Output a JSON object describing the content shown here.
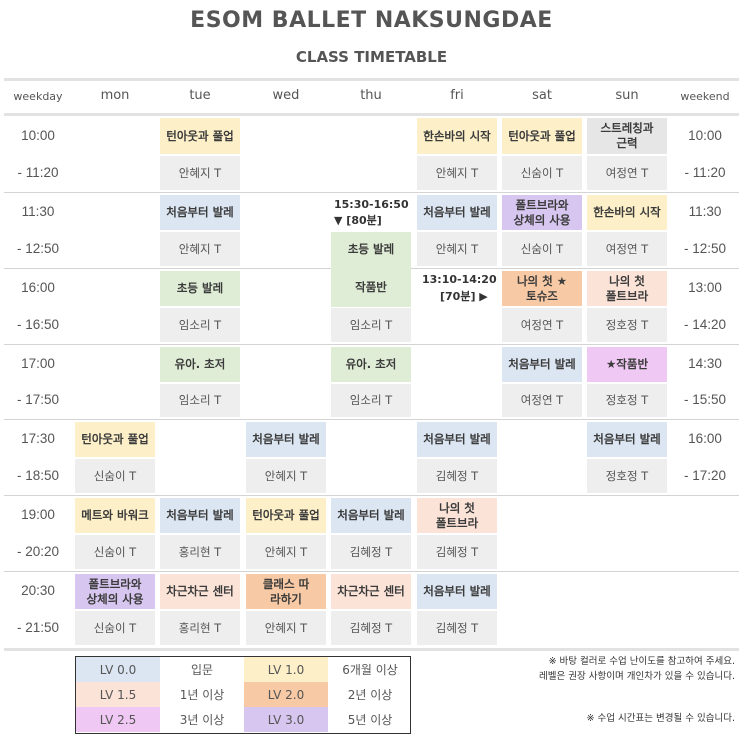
{
  "title": "ESOM BALLET NAKSUNGDAE",
  "subtitle": "CLASS TIMETABLE",
  "headers": {
    "weekday": "weekday",
    "mon": "mon",
    "tue": "tue",
    "wed": "wed",
    "thu": "thu",
    "fri": "fri",
    "sat": "sat",
    "sun": "sun",
    "weekend": "weekend"
  },
  "weekday_times": [
    {
      "start": "10:00",
      "end": "- 11:20"
    },
    {
      "start": "11:30",
      "end": "- 12:50"
    },
    {
      "start": "16:00",
      "end": "- 16:50"
    },
    {
      "start": "17:00",
      "end": "- 17:50"
    },
    {
      "start": "17:30",
      "end": "- 18:50"
    },
    {
      "start": "19:00",
      "end": "- 20:20"
    },
    {
      "start": "20:30",
      "end": "- 21:50"
    }
  ],
  "weekend_times": [
    {
      "start": "10:00",
      "end": "- 11:20"
    },
    {
      "start": "11:30",
      "end": "- 12:50"
    },
    {
      "start": "13:00",
      "end": "- 14:20"
    },
    {
      "start": "14:30",
      "end": "- 15:50"
    },
    {
      "start": "16:00",
      "end": "- 17:20"
    }
  ],
  "classes": {
    "tue_1": {
      "name": "턴아웃과 풀업",
      "teacher": "안혜지 T"
    },
    "tue_2": {
      "name": "처음부터 발레",
      "teacher": "안혜지 T"
    },
    "tue_3": {
      "name": "초등 발레",
      "teacher": "임소리 T"
    },
    "tue_4": {
      "name": "유아. 초저",
      "teacher": "임소리 T"
    },
    "tue_6": {
      "name": "처음부터 발레",
      "teacher": "홍리현 T"
    },
    "tue_7": {
      "name": "차근차근 센터",
      "teacher": "홍리현 T"
    },
    "mon_5": {
      "name": "턴아웃과 풀업",
      "teacher": "신숨이 T"
    },
    "mon_6": {
      "name": "메트와 바워크",
      "teacher": "신숨이 T"
    },
    "mon_7": {
      "name": "폴트브라와 상체의 사용",
      "teacher": "신숨이 T"
    },
    "wed_5": {
      "name": "처음부터 발레",
      "teacher": "안혜지 T"
    },
    "wed_6": {
      "name": "턴아웃과 풀업",
      "teacher": "안혜지 T"
    },
    "wed_7": {
      "name": "클래스 따라하기",
      "teacher": "안혜지 T"
    },
    "thu_note": {
      "time": "15:30-16:50",
      "dur": "▼ [80분]"
    },
    "thu_a": {
      "name": "초등 발레"
    },
    "thu_b": {
      "name": "작품반",
      "teacher": "임소리 T"
    },
    "thu_4": {
      "name": "유아. 초저",
      "teacher": "임소리 T"
    },
    "thu_6": {
      "name": "처음부터 발레",
      "teacher": "김혜정 T"
    },
    "thu_7": {
      "name": "차근차근 센터",
      "teacher": "김혜정 T"
    },
    "fri_1": {
      "name": "한손바의 시작",
      "teacher": "안혜지 T"
    },
    "fri_2": {
      "name": "처음부터 발레",
      "teacher": "안혜지 T"
    },
    "fri_note": {
      "time": "13:10-14:20",
      "dur": "[70분] ▶"
    },
    "fri_5": {
      "name": "처음부터 발레",
      "teacher": "김혜정 T"
    },
    "fri_6": {
      "name": "나의 첫 폴트브라",
      "teacher": "김혜정 T"
    },
    "fri_7": {
      "name": "처음부터 발레",
      "teacher": "김혜정 T"
    },
    "sat_1": {
      "name": "턴아웃과 풀업",
      "teacher": "신숨이 T"
    },
    "sat_2": {
      "name": "폴트브라와 상체의 사용",
      "teacher": "신숨이 T"
    },
    "sat_3": {
      "name": "나의 첫 ★토슈즈",
      "teacher": "여정연 T"
    },
    "sat_4": {
      "name": "처음부터 발레",
      "teacher": "여정연 T"
    },
    "sun_1": {
      "name": "스트레칭과 근력",
      "teacher": "여정연 T"
    },
    "sun_2": {
      "name": "한손바의 시작",
      "teacher": "여정연 T"
    },
    "sun_3": {
      "name": "나의 첫 폴트브라",
      "teacher": "정호정 T"
    },
    "sun_4": {
      "name": "★작품반",
      "teacher": "정호정 T"
    },
    "sun_5": {
      "name": "처음부터 발레",
      "teacher": "정호정 T"
    }
  },
  "legend": [
    {
      "level": "LV 0.0",
      "desc": "입문",
      "color": "#dce6f2"
    },
    {
      "level": "LV 1.0",
      "desc": "6개월 이상",
      "color": "#fdf0c9"
    },
    {
      "level": "LV 1.5",
      "desc": "1년 이상",
      "color": "#fbe3d8"
    },
    {
      "level": "LV 2.0",
      "desc": "2년 이상",
      "color": "#f7c9a4"
    },
    {
      "level": "LV 2.5",
      "desc": "3년 이상",
      "color": "#efc8f3"
    },
    {
      "level": "LV 3.0",
      "desc": "5년 이상",
      "color": "#d7c6ef"
    }
  ],
  "notes": {
    "line1": "※ 바탕 컬러로 수업 난이도를 참고하여 주세요.",
    "line2": "레벨은 권장 사항이며 개인차가 있을 수 있습니다.",
    "line3": "※ 수업 시간표는 변경될 수 있습니다."
  }
}
